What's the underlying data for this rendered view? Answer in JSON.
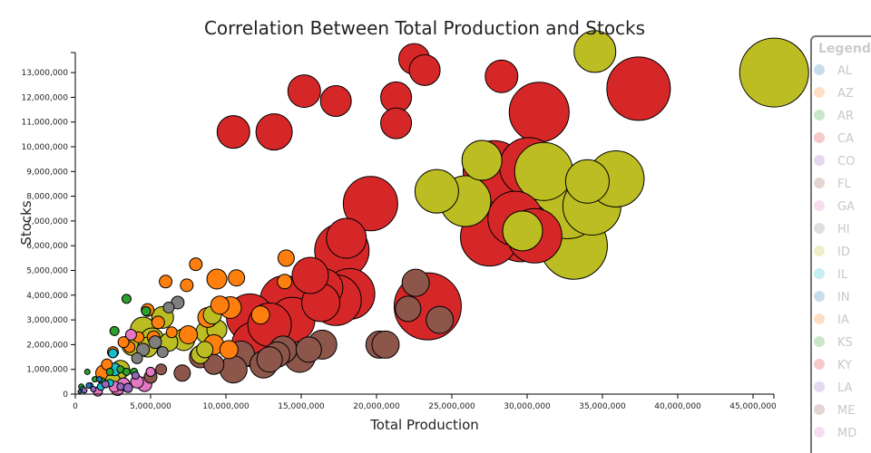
{
  "chart_data": {
    "type": "scatter",
    "title": "Correlation Between Total Production and Stocks",
    "xlabel": "Total Production",
    "ylabel": "Stocks",
    "xlim": [
      0,
      46000000
    ],
    "ylim": [
      0,
      13800000
    ],
    "x_ticks": [
      0,
      5000000,
      10000000,
      15000000,
      20000000,
      25000000,
      30000000,
      35000000,
      40000000,
      45000000
    ],
    "x_tick_labels": [
      "0",
      "5,000,000",
      "10,000,000",
      "15,000,000",
      "20,000,000",
      "25,000,000",
      "30,000,000",
      "35,000,000",
      "40,000,000",
      "45,000,000"
    ],
    "y_ticks": [
      0,
      1000000,
      2000000,
      3000000,
      4000000,
      5000000,
      6000000,
      7000000,
      8000000,
      9000000,
      10000000,
      11000000,
      12000000,
      13000000
    ],
    "y_tick_labels": [
      "0",
      "1,000,000",
      "2,000,000",
      "3,000,000",
      "4,000,000",
      "5,000,000",
      "6,000,000",
      "7,000,000",
      "8,000,000",
      "9,000,000",
      "10,000,000",
      "11,000,000",
      "12,000,000",
      "13,000,000"
    ],
    "grid": false,
    "legend": {
      "title": "Legend",
      "placement": "right",
      "entries": [
        {
          "label": "AL",
          "color": "#1f77b4"
        },
        {
          "label": "AZ",
          "color": "#ff7f0e"
        },
        {
          "label": "AR",
          "color": "#2ca02c"
        },
        {
          "label": "CA",
          "color": "#d62728"
        },
        {
          "label": "CO",
          "color": "#9467bd"
        },
        {
          "label": "FL",
          "color": "#8c564b"
        },
        {
          "label": "GA",
          "color": "#e377c2"
        },
        {
          "label": "HI",
          "color": "#7f7f7f"
        },
        {
          "label": "ID",
          "color": "#bcbd22"
        },
        {
          "label": "IL",
          "color": "#17becf"
        },
        {
          "label": "IN",
          "color": "#1f77b4"
        },
        {
          "label": "IA",
          "color": "#ff7f0e"
        },
        {
          "label": "KS",
          "color": "#2ca02c"
        },
        {
          "label": "KY",
          "color": "#d62728"
        },
        {
          "label": "LA",
          "color": "#9467bd"
        },
        {
          "label": "ME",
          "color": "#8c564b"
        },
        {
          "label": "MD",
          "color": "#e377c2"
        }
      ]
    },
    "size_encoding": "bubble area scales with total production",
    "series": [
      {
        "name": "CA",
        "color": "#d62728",
        "points": [
          [
            28.3,
            12.85,
            18
          ],
          [
            30.8,
            11.4,
            33
          ],
          [
            37.4,
            12.35,
            35
          ],
          [
            22.5,
            13.55,
            17
          ],
          [
            23.2,
            13.1,
            17
          ],
          [
            21.3,
            12.0,
            17
          ],
          [
            21.3,
            10.95,
            17
          ],
          [
            15.2,
            12.25,
            18
          ],
          [
            17.3,
            11.85,
            17
          ],
          [
            10.5,
            10.6,
            18
          ],
          [
            13.2,
            10.6,
            20
          ],
          [
            19.6,
            7.7,
            30
          ],
          [
            27.8,
            9.0,
            34
          ],
          [
            28.6,
            8.3,
            35
          ],
          [
            30.1,
            9.2,
            32
          ],
          [
            29.2,
            7.1,
            30
          ],
          [
            30.5,
            6.4,
            30
          ],
          [
            27.5,
            6.35,
            32
          ],
          [
            29.6,
            6.6,
            34
          ],
          [
            23.4,
            3.55,
            37
          ],
          [
            17.7,
            5.8,
            30
          ],
          [
            18.0,
            6.3,
            22
          ],
          [
            18.2,
            4.05,
            28
          ],
          [
            17.3,
            3.8,
            28
          ],
          [
            16.5,
            4.3,
            21
          ],
          [
            16.3,
            3.7,
            21
          ],
          [
            15.6,
            4.8,
            20
          ],
          [
            13.9,
            3.8,
            27
          ],
          [
            14.4,
            3.0,
            25
          ],
          [
            12.9,
            2.8,
            24
          ],
          [
            11.6,
            3.1,
            26
          ],
          [
            11.9,
            2.0,
            25
          ]
        ]
      },
      {
        "name": "ID",
        "color": "#bcbd22",
        "points": [
          [
            46.4,
            13.0,
            38
          ],
          [
            34.5,
            13.85,
            23
          ],
          [
            27.0,
            9.45,
            22
          ],
          [
            31.1,
            9.0,
            32
          ],
          [
            35.9,
            8.7,
            31
          ],
          [
            34.0,
            8.6,
            24
          ],
          [
            24.0,
            8.2,
            24
          ],
          [
            25.9,
            7.8,
            28
          ],
          [
            29.7,
            6.6,
            22
          ],
          [
            32.7,
            7.6,
            36
          ],
          [
            33.1,
            6.0,
            37
          ],
          [
            34.3,
            7.6,
            32
          ],
          [
            3.8,
            2.0,
            12
          ],
          [
            4.5,
            2.6,
            14
          ],
          [
            5.1,
            2.2,
            13
          ],
          [
            6.2,
            2.1,
            10
          ],
          [
            8.3,
            1.6,
            10
          ],
          [
            8.8,
            2.5,
            13
          ],
          [
            9.4,
            2.6,
            11
          ],
          [
            7.2,
            2.2,
            12
          ],
          [
            3.0,
            1.0,
            10
          ],
          [
            2.5,
            0.55,
            8
          ],
          [
            4.8,
            1.9,
            11
          ],
          [
            5.8,
            3.1,
            12
          ],
          [
            9.1,
            3.2,
            10
          ],
          [
            8.6,
            1.8,
            9
          ]
        ]
      },
      {
        "name": "AZ",
        "color": "#ff7f0e",
        "points": [
          [
            6.0,
            4.55,
            7
          ],
          [
            8.0,
            5.25,
            7
          ],
          [
            7.4,
            4.4,
            7
          ],
          [
            9.4,
            4.65,
            11
          ],
          [
            10.7,
            4.7,
            9
          ],
          [
            14.0,
            5.5,
            9
          ],
          [
            13.9,
            4.55,
            8
          ],
          [
            9.6,
            3.6,
            10
          ],
          [
            10.3,
            3.5,
            12
          ],
          [
            8.8,
            3.1,
            11
          ],
          [
            12.3,
            3.2,
            10
          ],
          [
            7.5,
            2.4,
            10
          ],
          [
            9.2,
            2.0,
            11
          ],
          [
            10.2,
            1.8,
            10
          ],
          [
            4.8,
            3.4,
            7
          ],
          [
            5.5,
            2.9,
            7
          ],
          [
            4.2,
            2.3,
            6
          ],
          [
            3.6,
            1.9,
            6
          ],
          [
            2.5,
            1.7,
            6
          ],
          [
            2.1,
            1.2,
            6
          ],
          [
            1.9,
            0.85,
            9
          ],
          [
            5.2,
            2.3,
            7
          ],
          [
            6.4,
            2.5,
            6
          ],
          [
            3.2,
            2.1,
            6
          ]
        ]
      },
      {
        "name": "FL",
        "color": "#8c564b",
        "points": [
          [
            22.6,
            4.5,
            15
          ],
          [
            22.1,
            3.45,
            14
          ],
          [
            24.2,
            3.0,
            15
          ],
          [
            20.2,
            2.0,
            15
          ],
          [
            20.6,
            2.0,
            15
          ],
          [
            16.4,
            2.0,
            16
          ],
          [
            15.5,
            1.8,
            14
          ],
          [
            13.8,
            1.8,
            15
          ],
          [
            13.4,
            1.6,
            14
          ],
          [
            14.9,
            1.5,
            17
          ],
          [
            11.0,
            1.6,
            15
          ],
          [
            12.9,
            1.4,
            14
          ],
          [
            10.5,
            1.0,
            15
          ],
          [
            12.5,
            1.2,
            15
          ],
          [
            9.2,
            1.2,
            11
          ],
          [
            8.3,
            1.5,
            12
          ],
          [
            7.1,
            0.85,
            9
          ],
          [
            5.0,
            0.7,
            7
          ],
          [
            5.7,
            1.0,
            6
          ]
        ]
      },
      {
        "name": "HI",
        "color": "#7f7f7f",
        "points": [
          [
            6.8,
            3.7,
            7
          ],
          [
            6.2,
            3.5,
            6
          ],
          [
            5.3,
            2.1,
            7
          ],
          [
            4.5,
            1.8,
            7
          ],
          [
            4.1,
            1.45,
            6
          ],
          [
            5.8,
            1.7,
            6
          ]
        ]
      },
      {
        "name": "AR",
        "color": "#2ca02c",
        "points": [
          [
            3.4,
            3.85,
            5
          ],
          [
            4.7,
            3.35,
            5
          ],
          [
            2.6,
            2.55,
            5
          ],
          [
            3.0,
            1.0,
            4
          ],
          [
            3.4,
            0.9,
            4
          ],
          [
            2.3,
            0.9,
            4
          ],
          [
            1.8,
            0.5,
            4
          ],
          [
            0.8,
            0.9,
            3
          ],
          [
            1.3,
            0.6,
            3
          ],
          [
            0.4,
            0.3,
            3
          ],
          [
            3.9,
            0.9,
            4
          ]
        ]
      },
      {
        "name": "GA",
        "color": "#e377c2",
        "points": [
          [
            3.7,
            2.4,
            6
          ],
          [
            4.6,
            0.4,
            8
          ],
          [
            4.1,
            0.5,
            7
          ],
          [
            2.8,
            0.2,
            7
          ],
          [
            3.2,
            0.4,
            7
          ],
          [
            2.6,
            0.3,
            6
          ],
          [
            1.5,
            0.1,
            5
          ],
          [
            5.0,
            0.9,
            5
          ]
        ]
      },
      {
        "name": "IL",
        "color": "#17becf",
        "points": [
          [
            2.5,
            1.65,
            5
          ],
          [
            2.6,
            1.0,
            7
          ],
          [
            1.7,
            0.3,
            4
          ],
          [
            1.0,
            0.35,
            3
          ],
          [
            0.5,
            0.2,
            3
          ],
          [
            2.3,
            0.45,
            4
          ]
        ]
      },
      {
        "name": "CO",
        "color": "#9467bd",
        "points": [
          [
            3.5,
            0.25,
            5
          ],
          [
            4.0,
            0.75,
            4
          ],
          [
            2.0,
            0.4,
            4
          ],
          [
            1.2,
            0.2,
            3
          ],
          [
            0.6,
            0.15,
            3
          ],
          [
            3.0,
            0.3,
            4
          ]
        ]
      },
      {
        "name": "AL",
        "color": "#1f77b4",
        "points": [
          [
            0.9,
            0.35,
            3
          ],
          [
            0.3,
            0.1,
            2
          ],
          [
            1.6,
            0.6,
            3
          ]
        ]
      }
    ]
  }
}
